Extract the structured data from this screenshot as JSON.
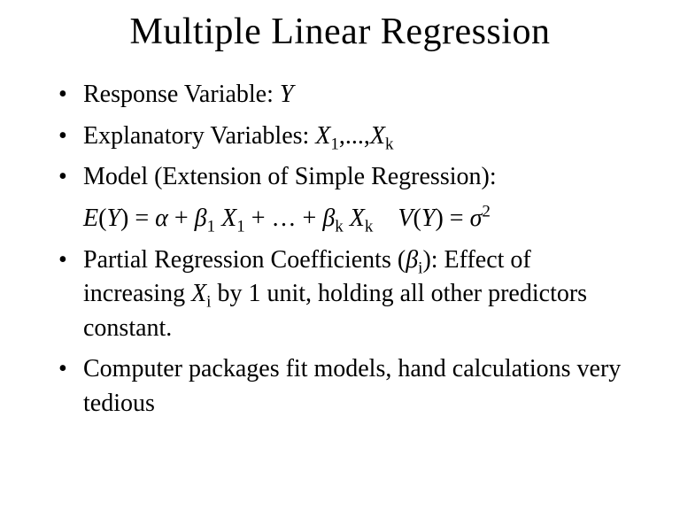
{
  "title": "Multiple Linear Regression",
  "symbols": {
    "alpha": "α",
    "beta": "β",
    "sigma": "σ",
    "Y": "Y",
    "X": "X",
    "E": "E",
    "V": "V"
  },
  "bullets": {
    "b1_pre": "Response Variable: ",
    "b2_pre": "Explanatory Variables: ",
    "b2_sub1": "1",
    "b2_mid": ",...,",
    "b2_subk": "k",
    "b3": "Model (Extension of Simple Regression):",
    "eq_lp": "(",
    "eq_rp": ")",
    "eq_eq": " = ",
    "eq_plus": " + ",
    "eq_ellip": " + … + ",
    "eq_sub1": "1",
    "eq_subk": "k",
    "eq_sup2": "2",
    "b5_pre": "Partial Regression Coefficients (",
    "b5_subi": "i",
    "b5_mid": "): Effect of increasing ",
    "b5_post": " by 1 unit, holding all other predictors constant.",
    "b6": "Computer packages fit models, hand calculations very tedious"
  },
  "style": {
    "title_fontsize": 42,
    "body_fontsize": 28,
    "text_color": "#000000",
    "background_color": "#ffffff",
    "font_family": "Times New Roman"
  }
}
